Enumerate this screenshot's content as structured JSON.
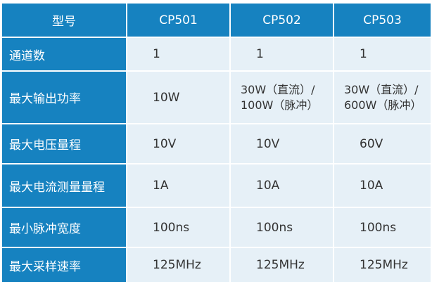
{
  "header": [
    "型号",
    "CP501",
    "CP502",
    "CP503"
  ],
  "rows": [
    {
      "label": "通道数",
      "values": [
        "1",
        "1",
        "1"
      ]
    },
    {
      "label": "最大输出功率",
      "values": [
        "10W",
        "30W（直流）/ 100W（脉冲）",
        "30W（直流）/ 600W（脉冲）"
      ]
    },
    {
      "label": "最大电压量程",
      "values": [
        "10V",
        "10V",
        "60V"
      ]
    },
    {
      "label": "最大电流测量量程",
      "values": [
        "1A",
        "10A",
        "10A"
      ]
    },
    {
      "label": "最小脉冲宽度",
      "values": [
        "100ns",
        "100ns",
        "100ns"
      ]
    },
    {
      "label": "最大采样速率",
      "values": [
        "125MHz",
        "125MHz",
        "125MHz"
      ]
    }
  ],
  "colors": {
    "header_bg": "#1682c0",
    "cell_bg": "#e6f0f7"
  }
}
